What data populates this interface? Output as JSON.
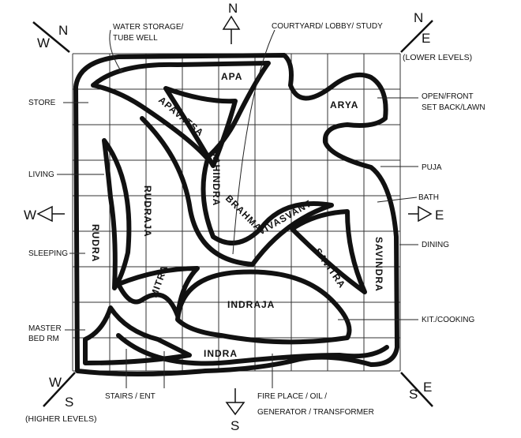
{
  "directions": {
    "north": "N",
    "south": "S",
    "east": "E",
    "west": "W",
    "north_west_w": "W",
    "north_west_n": "N",
    "north_east_n": "N",
    "north_east_e": "E",
    "south_west_w": "W",
    "south_west_s": "S",
    "south_east_s": "S",
    "south_east_e": "E"
  },
  "level_notes": {
    "lower": "(LOWER LEVELS)",
    "higher": "(HIGHER LEVELS)"
  },
  "zones": {
    "apa": "APA",
    "arya": "ARYA",
    "apavatsa": "APAVATSA",
    "mahindra": "MAHINDRA",
    "brahma": "BRAHMA",
    "vivasvant": "VIVASVANT",
    "rudraja": "RUDRAJA",
    "rudra": "RUDRA",
    "mitra": "MITRA",
    "savitra": "SAVITRA",
    "savindra": "SAVINDRA",
    "indraja": "INDRAJA",
    "indra": "INDRA"
  },
  "functions": {
    "water_storage_1": "WATER STORAGE/",
    "water_storage_2": "TUBE WELL",
    "courtyard": "COURTYARD/ LOBBY/ STUDY",
    "store": "STORE",
    "living": "LIVING",
    "sleeping": "SLEEPING",
    "master_bed_1": "MASTER",
    "master_bed_2": "BED RM",
    "open_front_1": "OPEN/FRONT",
    "open_front_2": "SET BACK/LAWN",
    "puja": "PUJA",
    "bath": "BATH",
    "dining": "DINING",
    "kitchen": "KIT./COOKING",
    "stairs": "STAIRS / ENT",
    "fireplace_1": "FIRE PLACE / OIL /",
    "fireplace_2": "GENERATOR / TRANSFORMER"
  }
}
